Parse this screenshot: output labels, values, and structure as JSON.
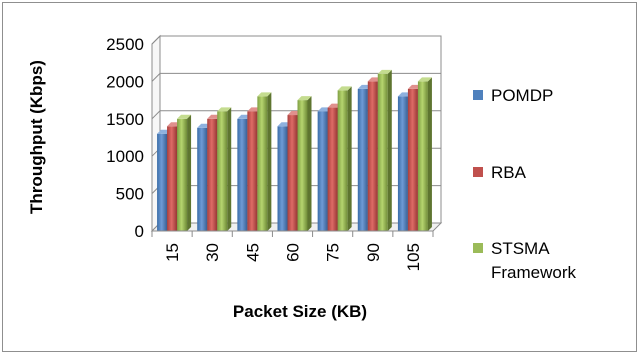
{
  "chart_data": {
    "type": "bar",
    "style": "3d-clustered-column",
    "title": "",
    "xlabel": "Packet Size (KB)",
    "ylabel": "Throughput (Kbps)",
    "ylim": [
      0,
      2500
    ],
    "y_ticks": [
      "0",
      "500",
      "1000",
      "1500",
      "2000",
      "2500"
    ],
    "categories": [
      "15",
      "30",
      "45",
      "60",
      "75",
      "90",
      "105"
    ],
    "grid": true,
    "legend_position": "right",
    "series": [
      {
        "name": "POMDP",
        "color": "#4F81BD",
        "values": [
          1300,
          1380,
          1500,
          1400,
          1600,
          1900,
          1800
        ]
      },
      {
        "name": "RBA",
        "color": "#C0504D",
        "values": [
          1400,
          1500,
          1600,
          1550,
          1650,
          2000,
          1900
        ]
      },
      {
        "name": "STSMA Framework",
        "color": "#9BBB59",
        "values": [
          1500,
          1600,
          1800,
          1750,
          1880,
          2100,
          2000
        ]
      }
    ]
  }
}
